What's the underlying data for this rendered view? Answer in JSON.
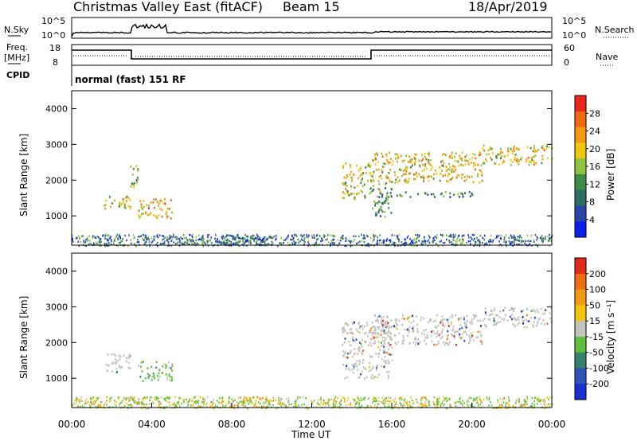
{
  "header": {
    "radar": "Christmas Valley East (fitACF)",
    "beam": "Beam 15",
    "date": "18/Apr/2019"
  },
  "strip": {
    "nsky_label": "N.Sky",
    "nsky_ticks": [
      "10^5",
      "10^0"
    ],
    "nsearch_label": "N.Search",
    "nsearch_ticks": [
      "10^5",
      "10^0"
    ],
    "freq_label_line1": "Freq.",
    "freq_label_line2": "[MHz]",
    "freq_ticks": [
      "18",
      "8"
    ],
    "nave_label": "Nave",
    "nave_ticks": [
      "60",
      "0"
    ],
    "cpid_label": "CPID",
    "cpid_text": "normal (fast) 151 RF"
  },
  "colors": {
    "power_scale": [
      "#0a22e6",
      "#2a47a8",
      "#2f6f63",
      "#3e8c4a",
      "#8fc23f",
      "#f2c70f",
      "#f29a16",
      "#ee6a12",
      "#e8281a"
    ],
    "velocity_scale": [
      "#1a2fd0",
      "#2b55b8",
      "#34826e",
      "#5ec13e",
      "#c4c4bf",
      "#f2c40f",
      "#f29a16",
      "#ef6d12",
      "#e22a18"
    ],
    "gray": "#c4c4bf"
  },
  "chart_data": [
    {
      "type": "heatmap",
      "title": "Power",
      "xlabel": "",
      "ylabel": "Slant Range [km]",
      "colorbar_label": "Power [dB]",
      "colorbar_ticks": [
        "28",
        "24",
        "20",
        "16",
        "12",
        "8",
        "4"
      ],
      "colorbar_range": [
        0,
        32
      ],
      "xlim_hours": [
        0,
        24
      ],
      "ylim_km": [
        180,
        4500
      ],
      "y_ticks": [
        "1000",
        "2000",
        "3000",
        "4000"
      ],
      "features": [
        {
          "t0": 1.6,
          "t1": 2.9,
          "r0": 1200,
          "r1": 1600,
          "p": 20
        },
        {
          "t0": 2.9,
          "t1": 3.3,
          "r0": 1750,
          "r1": 2500,
          "p": 14
        },
        {
          "t0": 3.3,
          "t1": 5.0,
          "r0": 950,
          "r1": 1500,
          "p": 22
        },
        {
          "t0": 13.5,
          "t1": 15.0,
          "r0": 1500,
          "r1": 2500,
          "p": 18
        },
        {
          "t0": 15.0,
          "t1": 16.0,
          "r0": 1000,
          "r1": 2000,
          "p": 12
        },
        {
          "t0": 15.0,
          "t1": 20.5,
          "r0": 1950,
          "r1": 2800,
          "p": 20
        },
        {
          "t0": 15.8,
          "t1": 20.0,
          "r0": 1550,
          "r1": 1700,
          "p": 10
        },
        {
          "t0": 20.5,
          "t1": 24.0,
          "r0": 2450,
          "r1": 3000,
          "p": 19
        },
        {
          "t0": 7.5,
          "t1": 10.0,
          "r0": 200,
          "r1": 500,
          "p": 6
        }
      ]
    },
    {
      "type": "heatmap",
      "title": "Velocity",
      "xlabel": "Time UT",
      "ylabel": "Slant Range [km]",
      "colorbar_label": "Velocity [m s⁻¹]",
      "colorbar_ticks": [
        "200",
        "100",
        "50",
        "15",
        "-15",
        "-50",
        "-100",
        "-200"
      ],
      "xlim_hours": [
        0,
        24
      ],
      "ylim_km": [
        180,
        4500
      ],
      "y_ticks": [
        "1000",
        "2000",
        "3000",
        "4000"
      ],
      "x_ticks": [
        "00:00",
        "04:00",
        "08:00",
        "12:00",
        "16:00",
        "20:00",
        "00:00"
      ],
      "features": [
        {
          "t0": 1.6,
          "t1": 2.9,
          "r0": 1200,
          "r1": 1700,
          "v": "gray"
        },
        {
          "t0": 3.3,
          "t1": 5.0,
          "r0": 950,
          "r1": 1500,
          "v": "green"
        },
        {
          "t0": 13.5,
          "t1": 16.0,
          "r0": 1000,
          "r1": 2600,
          "v": "gray"
        },
        {
          "t0": 15.0,
          "t1": 20.5,
          "r0": 1950,
          "r1": 2800,
          "v": "gray"
        },
        {
          "t0": 20.5,
          "t1": 24.0,
          "r0": 2450,
          "r1": 3000,
          "v": "gray"
        },
        {
          "t0": 8.5,
          "t1": 10.0,
          "r0": 300,
          "r1": 500,
          "v": "orange"
        }
      ]
    }
  ]
}
